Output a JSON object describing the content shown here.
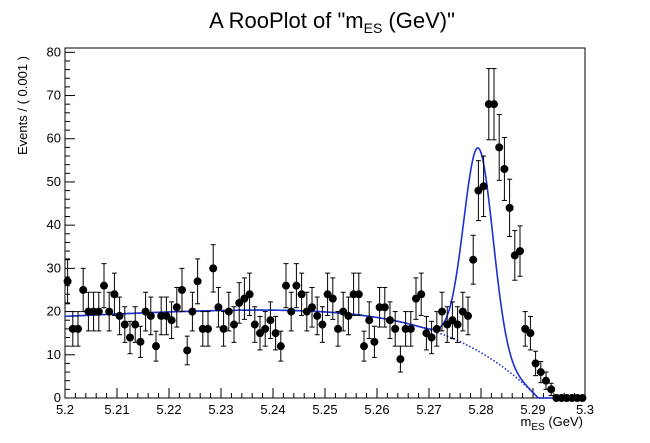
{
  "chart_data": {
    "type": "scatter",
    "title_main": "A RooPlot of \"m",
    "title_sub": "ES",
    "title_tail": " (GeV)\"",
    "xlabel_main": "m",
    "xlabel_sub": "ES",
    "xlabel_tail": " (GeV)",
    "ylabel": "Events / ( 0.001 )",
    "xlim": [
      5.2,
      5.3
    ],
    "ylim": [
      0,
      81
    ],
    "x_ticks": [
      5.2,
      5.21,
      5.22,
      5.23,
      5.24,
      5.25,
      5.26,
      5.27,
      5.28,
      5.29,
      5.3
    ],
    "x_tick_labels": [
      "5.2",
      "5.21",
      "5.22",
      "5.23",
      "5.24",
      "5.25",
      "5.26",
      "5.27",
      "5.28",
      "5.29",
      "5.3"
    ],
    "y_ticks": [
      0,
      10,
      20,
      30,
      40,
      50,
      60,
      70,
      80
    ],
    "y_tick_labels": [
      "0",
      "10",
      "20",
      "30",
      "40",
      "50",
      "60",
      "70",
      "80"
    ],
    "grid": false,
    "colors": {
      "data": "#000000",
      "model": "#1f2fd0",
      "background": "#1f2fd0"
    },
    "series": [
      {
        "kind": "data_points_with_errors",
        "x": [
          5.2005,
          5.2015,
          5.2025,
          5.2035,
          5.2045,
          5.2055,
          5.2065,
          5.2075,
          5.2085,
          5.2095,
          5.2105,
          5.2115,
          5.2125,
          5.2135,
          5.2145,
          5.2155,
          5.2165,
          5.2175,
          5.2185,
          5.2195,
          5.2205,
          5.2215,
          5.2225,
          5.2235,
          5.2245,
          5.2255,
          5.2265,
          5.2275,
          5.2285,
          5.2295,
          5.2305,
          5.2315,
          5.2325,
          5.2335,
          5.2345,
          5.2355,
          5.2365,
          5.2375,
          5.2385,
          5.2395,
          5.2405,
          5.2415,
          5.2425,
          5.2435,
          5.2445,
          5.2455,
          5.2465,
          5.2475,
          5.2485,
          5.2495,
          5.2505,
          5.2515,
          5.2525,
          5.2535,
          5.2545,
          5.2555,
          5.2565,
          5.2575,
          5.2585,
          5.2595,
          5.2605,
          5.2615,
          5.2625,
          5.2635,
          5.2645,
          5.2655,
          5.2665,
          5.2675,
          5.2685,
          5.2695,
          5.2705,
          5.2715,
          5.2725,
          5.2735,
          5.2745,
          5.2755,
          5.2765,
          5.2775,
          5.2785,
          5.2795,
          5.2805,
          5.2815,
          5.2825,
          5.2835,
          5.2845,
          5.2855,
          5.2865,
          5.2875,
          5.2885,
          5.2895,
          5.2905,
          5.2915,
          5.2925,
          5.2935,
          5.2945,
          5.2955,
          5.2965,
          5.2975,
          5.2985,
          5.2995
        ],
        "y": [
          27,
          16,
          16,
          25,
          20,
          20,
          20,
          26,
          20,
          24,
          19,
          17,
          14,
          17,
          13,
          20,
          19,
          12,
          19,
          19,
          18,
          21,
          25,
          11,
          20,
          27,
          16,
          16,
          30,
          21,
          16,
          20,
          17,
          22,
          23,
          24,
          17,
          15,
          16,
          18,
          15,
          12,
          26,
          20,
          26,
          24,
          20,
          21,
          19,
          17,
          24,
          23,
          16,
          20,
          19,
          24,
          24,
          12,
          18,
          13,
          21,
          21,
          18,
          16,
          9,
          16,
          16,
          23,
          24,
          15,
          14,
          16,
          20,
          17,
          18,
          17,
          20,
          19,
          32,
          48,
          49,
          68,
          68,
          58,
          53,
          44,
          33,
          34,
          16,
          15,
          8,
          6,
          4,
          2,
          0,
          0,
          0,
          0,
          0,
          0
        ]
      },
      {
        "kind": "total_model",
        "style": "solid",
        "name": ""
      },
      {
        "kind": "background_component",
        "style": "dotted",
        "name": ""
      }
    ]
  }
}
